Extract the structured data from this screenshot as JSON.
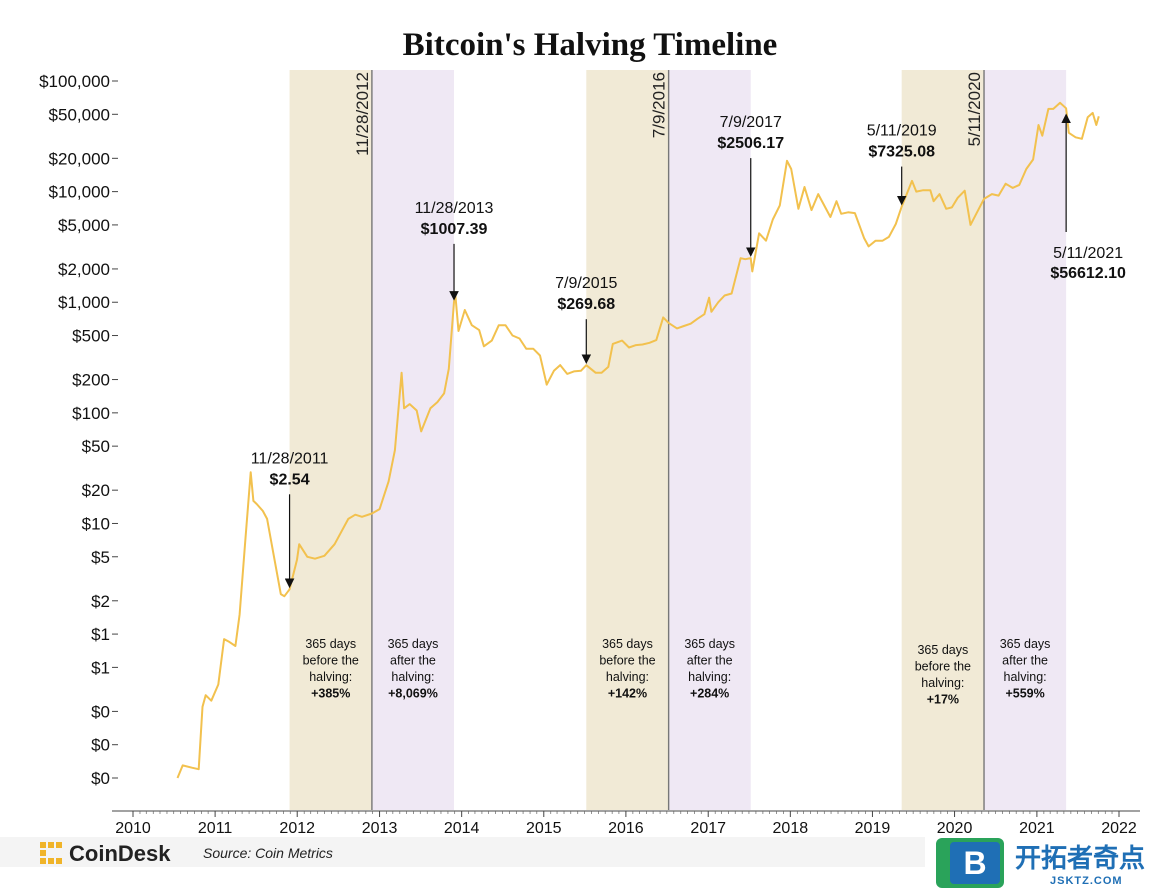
{
  "chart_data": {
    "type": "line",
    "title": "Bitcoin's Halving Timeline",
    "x_axis": {
      "type": "date",
      "range": [
        "2010-01-01",
        "2022-01-01"
      ],
      "ticks": [
        "2010",
        "2011",
        "2012",
        "2013",
        "2014",
        "2015",
        "2016",
        "2017",
        "2018",
        "2019",
        "2020",
        "2021",
        "2022"
      ]
    },
    "y_axis": {
      "scale": "log",
      "ticks": [
        {
          "label": "$0",
          "value": 0.05
        },
        {
          "label": "$0",
          "value": 0.1
        },
        {
          "label": "$0",
          "value": 0.2
        },
        {
          "label": "$1",
          "value": 0.5
        },
        {
          "label": "$1",
          "value": 1
        },
        {
          "label": "$2",
          "value": 2
        },
        {
          "label": "$5",
          "value": 5
        },
        {
          "label": "$10",
          "value": 10
        },
        {
          "label": "$20",
          "value": 20
        },
        {
          "label": "$50",
          "value": 50
        },
        {
          "label": "$100",
          "value": 100
        },
        {
          "label": "$200",
          "value": 200
        },
        {
          "label": "$500",
          "value": 500
        },
        {
          "label": "$1,000",
          "value": 1000
        },
        {
          "label": "$2,000",
          "value": 2000
        },
        {
          "label": "$5,000",
          "value": 5000
        },
        {
          "label": "$10,000",
          "value": 10000
        },
        {
          "label": "$20,000",
          "value": 20000
        },
        {
          "label": "$50,000",
          "value": 50000
        },
        {
          "label": "$100,000",
          "value": 100000
        }
      ]
    },
    "series": [
      {
        "line_color": "#f2c14e",
        "points": [
          [
            "2010-07-18",
            0.05
          ],
          [
            "2010-08-10",
            0.065
          ],
          [
            "2010-09-20",
            0.062
          ],
          [
            "2010-10-20",
            0.06
          ],
          [
            "2010-11-06",
            0.22
          ],
          [
            "2010-11-20",
            0.28
          ],
          [
            "2010-12-15",
            0.25
          ],
          [
            "2011-01-15",
            0.35
          ],
          [
            "2011-02-10",
            0.9
          ],
          [
            "2011-03-05",
            0.85
          ],
          [
            "2011-04-01",
            0.78
          ],
          [
            "2011-04-20",
            1.5
          ],
          [
            "2011-05-15",
            7
          ],
          [
            "2011-06-08",
            29
          ],
          [
            "2011-06-20",
            16
          ],
          [
            "2011-07-05",
            15
          ],
          [
            "2011-08-01",
            13
          ],
          [
            "2011-08-20",
            11
          ],
          [
            "2011-09-20",
            5
          ],
          [
            "2011-10-20",
            2.3
          ],
          [
            "2011-11-05",
            2.2
          ],
          [
            "2011-11-28",
            2.54
          ],
          [
            "2011-12-31",
            4.7
          ],
          [
            "2012-01-10",
            6.5
          ],
          [
            "2012-02-15",
            5
          ],
          [
            "2012-03-20",
            4.8
          ],
          [
            "2012-05-01",
            5.1
          ],
          [
            "2012-06-15",
            6.5
          ],
          [
            "2012-08-15",
            11
          ],
          [
            "2012-09-15",
            12
          ],
          [
            "2012-10-15",
            11.5
          ],
          [
            "2012-11-28",
            12.3
          ],
          [
            "2013-01-01",
            13.5
          ],
          [
            "2013-02-10",
            24
          ],
          [
            "2013-03-10",
            46
          ],
          [
            "2013-04-09",
            230
          ],
          [
            "2013-04-20",
            110
          ],
          [
            "2013-05-15",
            120
          ],
          [
            "2013-06-15",
            105
          ],
          [
            "2013-07-05",
            68
          ],
          [
            "2013-08-15",
            110
          ],
          [
            "2013-09-15",
            125
          ],
          [
            "2013-10-15",
            150
          ],
          [
            "2013-11-05",
            250
          ],
          [
            "2013-11-28",
            1007.39
          ],
          [
            "2013-12-04",
            1150
          ],
          [
            "2013-12-18",
            550
          ],
          [
            "2014-01-15",
            850
          ],
          [
            "2014-02-15",
            620
          ],
          [
            "2014-03-20",
            560
          ],
          [
            "2014-04-10",
            400
          ],
          [
            "2014-05-15",
            450
          ],
          [
            "2014-06-15",
            620
          ],
          [
            "2014-07-15",
            620
          ],
          [
            "2014-08-15",
            500
          ],
          [
            "2014-09-15",
            470
          ],
          [
            "2014-10-15",
            380
          ],
          [
            "2014-11-15",
            380
          ],
          [
            "2014-12-15",
            330
          ],
          [
            "2015-01-14",
            180
          ],
          [
            "2015-02-15",
            240
          ],
          [
            "2015-03-15",
            270
          ],
          [
            "2015-04-15",
            225
          ],
          [
            "2015-05-15",
            237
          ],
          [
            "2015-06-15",
            240
          ],
          [
            "2015-07-09",
            269.68
          ],
          [
            "2015-08-20",
            230
          ],
          [
            "2015-09-15",
            230
          ],
          [
            "2015-10-15",
            260
          ],
          [
            "2015-11-04",
            420
          ],
          [
            "2015-12-15",
            450
          ],
          [
            "2016-01-15",
            390
          ],
          [
            "2016-02-15",
            410
          ],
          [
            "2016-03-15",
            415
          ],
          [
            "2016-04-15",
            430
          ],
          [
            "2016-05-15",
            455
          ],
          [
            "2016-06-15",
            730
          ],
          [
            "2016-07-09",
            650
          ],
          [
            "2016-08-15",
            580
          ],
          [
            "2016-09-15",
            610
          ],
          [
            "2016-10-15",
            640
          ],
          [
            "2016-11-15",
            710
          ],
          [
            "2016-12-15",
            780
          ],
          [
            "2017-01-05",
            1100
          ],
          [
            "2017-01-15",
            820
          ],
          [
            "2017-02-15",
            1000
          ],
          [
            "2017-03-15",
            1150
          ],
          [
            "2017-04-15",
            1200
          ],
          [
            "2017-05-25",
            2500
          ],
          [
            "2017-06-15",
            2450
          ],
          [
            "2017-07-09",
            2506.17
          ],
          [
            "2017-07-16",
            1900
          ],
          [
            "2017-08-15",
            4200
          ],
          [
            "2017-09-15",
            3600
          ],
          [
            "2017-10-15",
            5600
          ],
          [
            "2017-11-15",
            7500
          ],
          [
            "2017-12-17",
            19000
          ],
          [
            "2018-01-05",
            16000
          ],
          [
            "2018-02-06",
            7000
          ],
          [
            "2018-03-05",
            11000
          ],
          [
            "2018-04-05",
            6800
          ],
          [
            "2018-05-05",
            9500
          ],
          [
            "2018-06-28",
            5900
          ],
          [
            "2018-07-25",
            8200
          ],
          [
            "2018-08-15",
            6300
          ],
          [
            "2018-09-15",
            6500
          ],
          [
            "2018-10-15",
            6400
          ],
          [
            "2018-11-25",
            3800
          ],
          [
            "2018-12-15",
            3200
          ],
          [
            "2019-01-15",
            3600
          ],
          [
            "2019-02-15",
            3600
          ],
          [
            "2019-03-15",
            3900
          ],
          [
            "2019-04-15",
            5100
          ],
          [
            "2019-05-11",
            7325.08
          ],
          [
            "2019-06-26",
            12500
          ],
          [
            "2019-07-15",
            10000
          ],
          [
            "2019-08-15",
            10300
          ],
          [
            "2019-09-15",
            10300
          ],
          [
            "2019-09-30",
            8200
          ],
          [
            "2019-10-26",
            9500
          ],
          [
            "2019-11-25",
            7000
          ],
          [
            "2019-12-20",
            7200
          ],
          [
            "2020-01-15",
            8800
          ],
          [
            "2020-02-15",
            10200
          ],
          [
            "2020-03-12",
            5000
          ],
          [
            "2020-04-15",
            6800
          ],
          [
            "2020-05-11",
            8600
          ],
          [
            "2020-06-15",
            9500
          ],
          [
            "2020-07-15",
            9200
          ],
          [
            "2020-08-15",
            11800
          ],
          [
            "2020-09-15",
            10800
          ],
          [
            "2020-10-15",
            11500
          ],
          [
            "2020-11-15",
            16000
          ],
          [
            "2020-12-15",
            19500
          ],
          [
            "2021-01-08",
            40000
          ],
          [
            "2021-01-25",
            32000
          ],
          [
            "2021-02-21",
            56000
          ],
          [
            "2021-03-15",
            56000
          ],
          [
            "2021-04-14",
            63500
          ],
          [
            "2021-05-11",
            56612.1
          ],
          [
            "2021-05-23",
            34000
          ],
          [
            "2021-06-22",
            31000
          ],
          [
            "2021-07-20",
            30000
          ],
          [
            "2021-08-15",
            47000
          ],
          [
            "2021-09-06",
            51500
          ],
          [
            "2021-09-22",
            40000
          ],
          [
            "2021-10-03",
            48000
          ]
        ]
      }
    ],
    "halvings": [
      {
        "date": "2012-11-28",
        "label": "11/28/2012"
      },
      {
        "date": "2016-07-09",
        "label": "7/9/2016"
      },
      {
        "date": "2020-05-11",
        "label": "5/11/2020"
      }
    ],
    "bands": [
      {
        "start": "2011-11-28",
        "end": "2012-11-28",
        "kind": "before",
        "lines": [
          "365 days",
          "before the",
          "halving:"
        ],
        "pct": "+385%",
        "color": "#f1ead6"
      },
      {
        "start": "2012-11-28",
        "end": "2013-11-28",
        "kind": "after",
        "lines": [
          "365 days",
          "after the",
          "halving:"
        ],
        "pct": "+8,069%",
        "color": "#efe8f4"
      },
      {
        "start": "2015-07-09",
        "end": "2016-07-09",
        "kind": "before",
        "lines": [
          "365 days",
          "before the",
          "halving:"
        ],
        "pct": "+142%",
        "color": "#f1ead6"
      },
      {
        "start": "2016-07-09",
        "end": "2017-07-09",
        "kind": "after",
        "lines": [
          "365 days",
          "after the",
          "halving:"
        ],
        "pct": "+284%",
        "color": "#efe8f4"
      },
      {
        "start": "2019-05-11",
        "end": "2020-05-11",
        "kind": "before",
        "lines": [
          "365 days",
          "before the",
          "halving:"
        ],
        "pct": "+17%",
        "color": "#f1ead6"
      },
      {
        "start": "2020-05-11",
        "end": "2021-05-11",
        "kind": "after",
        "lines": [
          "365 days",
          "after the",
          "halving:"
        ],
        "pct": "+559%",
        "color": "#efe8f4"
      }
    ],
    "annotations": [
      {
        "date_label": "11/28/2011",
        "price_label": "$2.54",
        "at": [
          "2011-11-28",
          2.54
        ],
        "text_pos": "above"
      },
      {
        "date_label": "11/28/2013",
        "price_label": "$1007.39",
        "at": [
          "2013-11-28",
          1007.39
        ],
        "text_pos": "above"
      },
      {
        "date_label": "7/9/2015",
        "price_label": "$269.68",
        "at": [
          "2015-07-09",
          269.68
        ],
        "text_pos": "above"
      },
      {
        "date_label": "7/9/2017",
        "price_label": "$2506.17",
        "at": [
          "2017-07-09",
          2506.17
        ],
        "text_pos": "above"
      },
      {
        "date_label": "5/11/2019",
        "price_label": "$7325.08",
        "at": [
          "2019-05-11",
          7325.08
        ],
        "text_pos": "above"
      },
      {
        "date_label": "5/11/2021",
        "price_label": "$56612.10",
        "at": [
          "2021-05-11",
          56612.1
        ],
        "text_pos": "below"
      }
    ],
    "colors": {
      "line": "#f2c14e",
      "before_band": "#f1ead6",
      "after_band": "#efe8f4",
      "halving_line": "#777777"
    }
  },
  "footer": {
    "brand": "CoinDesk",
    "source": "Source: Coin Metrics",
    "logo_icon": "coindesk-logo-icon"
  },
  "watermark": {
    "cn_text": "开拓者奇点",
    "url": "JSKTZ.COM",
    "badge_letter": "B",
    "logo_icon": "jsktz-logo-icon"
  }
}
